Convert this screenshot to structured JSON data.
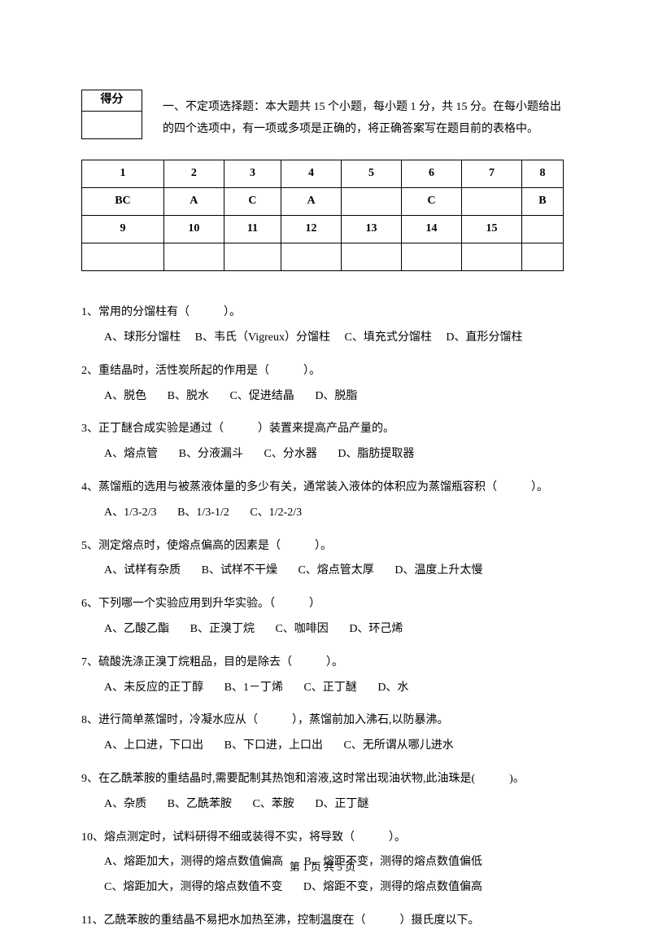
{
  "score_label": "得分",
  "instructions": "一、不定项选择题：本大题共 15 个小题，每小题 1 分，共 15 分。在每小题给出的四个选项中，有一项或多项是正确的，将正确答案写在题目前的表格中。",
  "answer_headers_1": [
    "1",
    "2",
    "3",
    "4",
    "5",
    "6",
    "7",
    "8"
  ],
  "answer_values_1": [
    "BC",
    "A",
    "C",
    "A",
    "",
    "C",
    "",
    "B"
  ],
  "answer_headers_2": [
    "9",
    "10",
    "11",
    "12",
    "13",
    "14",
    "15",
    ""
  ],
  "answer_values_2": [
    "",
    "",
    "",
    "",
    "",
    "",
    "",
    ""
  ],
  "q1": {
    "text": "1、常用的分馏柱有（　　　）。",
    "opts": [
      "A、球形分馏柱",
      "B、韦氏（Vigreux）分馏柱",
      "C、填充式分馏柱",
      "D、直形分馏柱"
    ]
  },
  "q2": {
    "text": "2、重结晶时，活性炭所起的作用是（　　　）。",
    "opts": [
      "A、脱色",
      "B、脱水",
      "C、促进结晶",
      "D、脱脂"
    ]
  },
  "q3": {
    "text": "3、正丁醚合成实验是通过（　　　）装置来提高产品产量的。",
    "opts": [
      "A、熔点管",
      "B、分液漏斗",
      "C、分水器",
      "D、脂肪提取器"
    ]
  },
  "q4": {
    "text": "4、蒸馏瓶的选用与被蒸液体量的多少有关，通常装入液体的体积应为蒸馏瓶容积（　　　）。",
    "opts": [
      "A、1/3-2/3",
      "B、1/3-1/2",
      "C、1/2-2/3"
    ]
  },
  "q5": {
    "text": "5、测定熔点时，使熔点偏高的因素是（　　　）。",
    "opts": [
      "A、试样有杂质",
      "B、试样不干燥",
      "C、熔点管太厚",
      "D、温度上升太慢"
    ]
  },
  "q6": {
    "text": "6、下列哪一个实验应用到升华实验。（　　　）",
    "opts": [
      "A、乙酸乙酯",
      "B、正溴丁烷",
      "C、咖啡因",
      "D、环己烯"
    ]
  },
  "q7": {
    "text": "7、硫酸洗涤正溴丁烷粗品，目的是除去（　　　）。",
    "opts": [
      "A、未反应的正丁醇",
      "B、1－丁烯",
      "C、正丁醚",
      "D、水"
    ]
  },
  "q8": {
    "text": "8、进行简单蒸馏时，冷凝水应从（　　　），蒸馏前加入沸石,以防暴沸。",
    "opts": [
      "A、上口进，下口出",
      "B、下口进，上口出",
      "C、无所谓从哪儿进水"
    ]
  },
  "q9": {
    "text": "9、在乙酰苯胺的重结晶时,需要配制其热饱和溶液,这时常出现油状物,此油珠是(　　　)。",
    "opts": [
      "A、杂质",
      "B、乙酰苯胺",
      "C、苯胺",
      "D、正丁醚"
    ]
  },
  "q10": {
    "text": "10、熔点测定时，试料研得不细或装得不实，将导致（　　　）。",
    "optsA": "A、熔距加大，测得的熔点数值偏高",
    "optsB": "B、熔距不变，测得的熔点数值偏低",
    "optsC": "C、熔距加大，测得的熔点数值不变",
    "optsD": "D、熔距不变，测得的熔点数值偏高"
  },
  "q11": {
    "text": "11、乙酰苯胺的重结晶不易把水加热至沸，控制温度在（　　　）摄氏度以下。"
  },
  "footer": "第 1 页 共 5 页"
}
